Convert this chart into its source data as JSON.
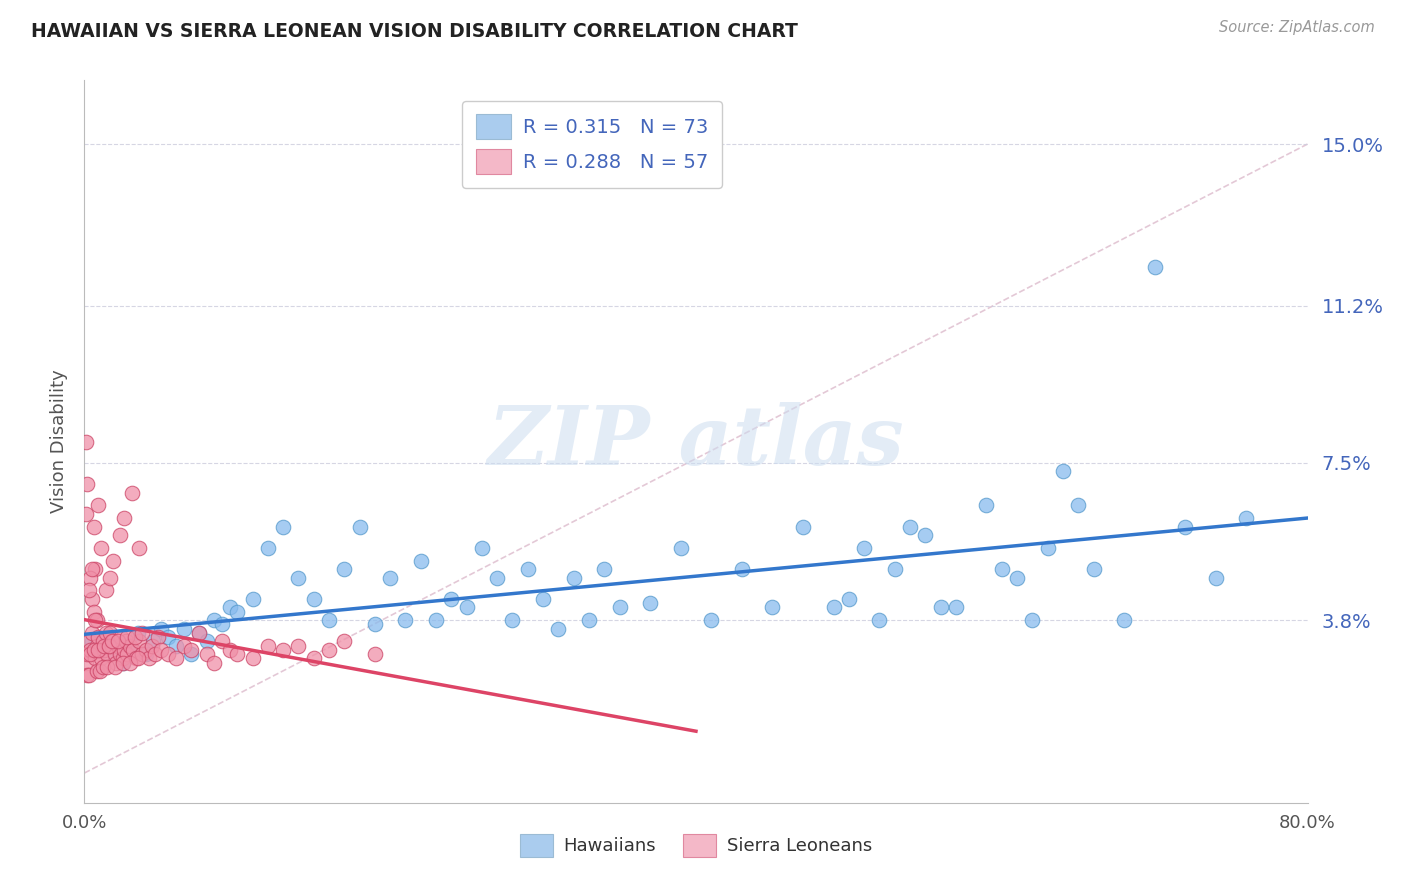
{
  "title": "HAWAIIAN VS SIERRA LEONEAN VISION DISABILITY CORRELATION CHART",
  "source": "Source: ZipAtlas.com",
  "ylabel": "Vision Disability",
  "legend1_label": "R = 0.315   N = 73",
  "legend2_label": "R = 0.288   N = 57",
  "legend1_color": "#aaccee",
  "legend2_color": "#f4b8c8",
  "hawaiian_color": "#88bbee",
  "sierra_color": "#f090a8",
  "trend_hawaiian_color": "#3377cc",
  "trend_sierra_color": "#dd4466",
  "diag_color": "#ddbbcc",
  "grid_color": "#ccccdd",
  "xmin": 0.0,
  "xmax": 0.8,
  "ymin": -0.005,
  "ymax": 0.165,
  "ytick_vals": [
    0.038,
    0.075,
    0.112,
    0.15
  ],
  "ytick_labels": [
    "3.8%",
    "7.5%",
    "11.2%",
    "15.0%"
  ],
  "hawaiian_x": [
    0.005,
    0.01,
    0.015,
    0.02,
    0.025,
    0.03,
    0.035,
    0.04,
    0.045,
    0.05,
    0.055,
    0.06,
    0.065,
    0.07,
    0.075,
    0.08,
    0.085,
    0.09,
    0.095,
    0.1,
    0.11,
    0.12,
    0.13,
    0.14,
    0.15,
    0.16,
    0.17,
    0.18,
    0.19,
    0.2,
    0.21,
    0.22,
    0.23,
    0.24,
    0.25,
    0.26,
    0.27,
    0.28,
    0.29,
    0.3,
    0.31,
    0.32,
    0.33,
    0.34,
    0.35,
    0.37,
    0.39,
    0.41,
    0.43,
    0.45,
    0.47,
    0.49,
    0.51,
    0.53,
    0.55,
    0.57,
    0.59,
    0.61,
    0.63,
    0.65,
    0.5,
    0.52,
    0.54,
    0.56,
    0.6,
    0.62,
    0.64,
    0.66,
    0.68,
    0.7,
    0.72,
    0.74,
    0.76
  ],
  "hawaiian_y": [
    0.033,
    0.031,
    0.034,
    0.03,
    0.028,
    0.032,
    0.035,
    0.03,
    0.033,
    0.036,
    0.034,
    0.032,
    0.036,
    0.03,
    0.035,
    0.033,
    0.038,
    0.037,
    0.041,
    0.04,
    0.043,
    0.055,
    0.06,
    0.048,
    0.043,
    0.038,
    0.05,
    0.06,
    0.037,
    0.048,
    0.038,
    0.052,
    0.038,
    0.043,
    0.041,
    0.055,
    0.048,
    0.038,
    0.05,
    0.043,
    0.036,
    0.048,
    0.038,
    0.05,
    0.041,
    0.042,
    0.055,
    0.038,
    0.05,
    0.041,
    0.06,
    0.041,
    0.055,
    0.05,
    0.058,
    0.041,
    0.065,
    0.048,
    0.055,
    0.065,
    0.043,
    0.038,
    0.06,
    0.041,
    0.05,
    0.038,
    0.073,
    0.05,
    0.038,
    0.121,
    0.06,
    0.048,
    0.062
  ],
  "sierra_x": [
    0.001,
    0.002,
    0.003,
    0.004,
    0.005,
    0.006,
    0.007,
    0.008,
    0.009,
    0.01,
    0.011,
    0.012,
    0.013,
    0.014,
    0.015,
    0.016,
    0.017,
    0.018,
    0.019,
    0.02,
    0.021,
    0.022,
    0.023,
    0.024,
    0.025,
    0.026,
    0.027,
    0.028,
    0.03,
    0.032,
    0.034,
    0.036,
    0.038,
    0.04,
    0.042,
    0.044,
    0.046,
    0.048,
    0.05,
    0.055,
    0.06,
    0.065,
    0.07,
    0.075,
    0.08,
    0.085,
    0.09,
    0.095,
    0.1,
    0.11,
    0.12,
    0.13,
    0.14,
    0.15,
    0.16,
    0.17,
    0.19
  ],
  "sierra_y": [
    0.028,
    0.03,
    0.033,
    0.031,
    0.035,
    0.06,
    0.029,
    0.032,
    0.034,
    0.031,
    0.029,
    0.033,
    0.031,
    0.035,
    0.03,
    0.032,
    0.035,
    0.032,
    0.033,
    0.03,
    0.028,
    0.032,
    0.03,
    0.034,
    0.029,
    0.031,
    0.033,
    0.03,
    0.032,
    0.031,
    0.029,
    0.033,
    0.03,
    0.031,
    0.029,
    0.032,
    0.03,
    0.034,
    0.031,
    0.03,
    0.029,
    0.032,
    0.031,
    0.035,
    0.03,
    0.028,
    0.033,
    0.031,
    0.03,
    0.029,
    0.032,
    0.031,
    0.032,
    0.029,
    0.031,
    0.033,
    0.03
  ],
  "sierra_extra_x": [
    0.002,
    0.003,
    0.008,
    0.01,
    0.012,
    0.015,
    0.02,
    0.025,
    0.03,
    0.035,
    0.004,
    0.006,
    0.009,
    0.013,
    0.016,
    0.018,
    0.022,
    0.028,
    0.033,
    0.038,
    0.005,
    0.007,
    0.011,
    0.014,
    0.017,
    0.019,
    0.023,
    0.026,
    0.031,
    0.036,
    0.001,
    0.002,
    0.004,
    0.006,
    0.008,
    0.003,
    0.007,
    0.001,
    0.005,
    0.009
  ],
  "sierra_extra_y": [
    0.025,
    0.025,
    0.026,
    0.026,
    0.027,
    0.027,
    0.027,
    0.028,
    0.028,
    0.029,
    0.03,
    0.031,
    0.031,
    0.032,
    0.032,
    0.033,
    0.033,
    0.034,
    0.034,
    0.035,
    0.043,
    0.05,
    0.055,
    0.045,
    0.048,
    0.052,
    0.058,
    0.062,
    0.068,
    0.055,
    0.063,
    0.07,
    0.048,
    0.04,
    0.038,
    0.045,
    0.038,
    0.08,
    0.05,
    0.065
  ]
}
